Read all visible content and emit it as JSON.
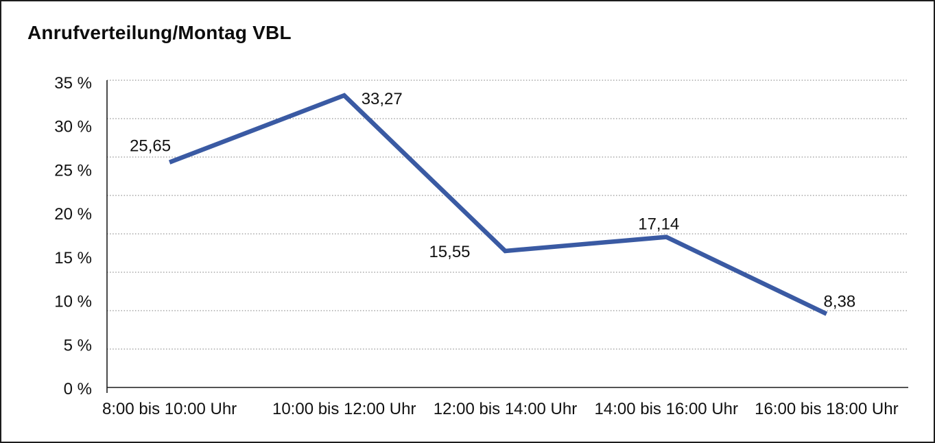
{
  "chart_data": {
    "type": "line",
    "title": "Anrufverteilung/Montag VBL",
    "categories": [
      "8:00 bis 10:00 Uhr",
      "10:00 bis 12:00 Uhr",
      "12:00 bis 14:00 Uhr",
      "14:00 bis 16:00 Uhr",
      "16:00 bis 18:00 Uhr"
    ],
    "values": [
      25.65,
      33.27,
      15.55,
      17.14,
      8.38
    ],
    "value_labels": [
      "25,65",
      "33,27",
      "15,55",
      "17,14",
      "8,38"
    ],
    "y_tick_labels": [
      "35 %",
      "30 %",
      "25 %",
      "20 %",
      "15 %",
      "10 %",
      "5 %",
      "0 %"
    ],
    "ylim": [
      0,
      35
    ],
    "xlabel": "",
    "ylabel": "",
    "grid": "horizontal-dotted",
    "y_grid_divisions": 8,
    "legend": "none",
    "line_color": "#3a5aa3",
    "axis_color": "#1c1c1c",
    "gridline_color": "#787878",
    "text_color": "#111111"
  }
}
